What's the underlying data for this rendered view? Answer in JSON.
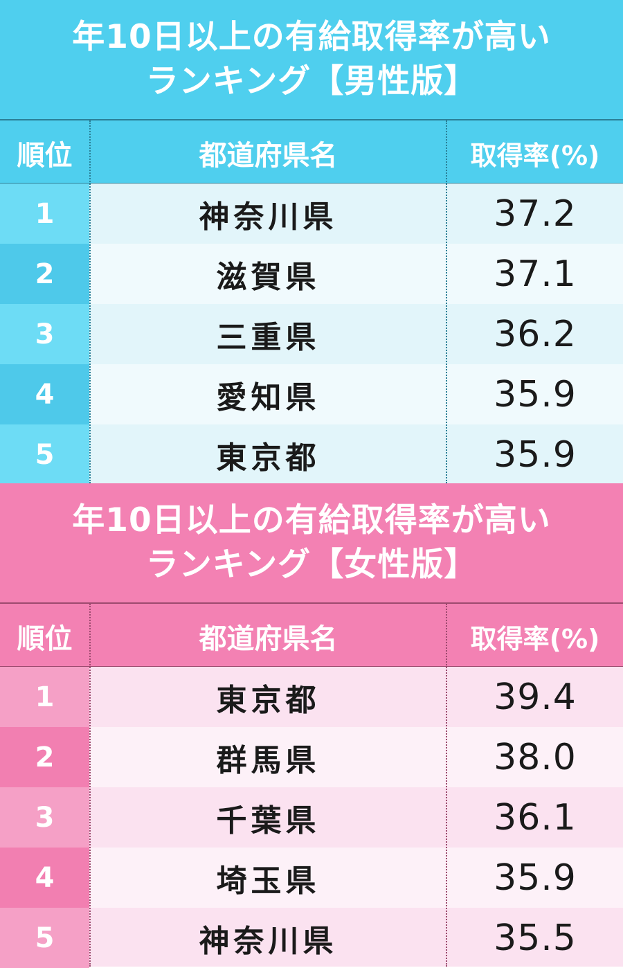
{
  "tables": [
    {
      "id": "male",
      "title_line1": "年10日以上の有給取得率が高い",
      "title_line2": "ランキング【男性版】",
      "headers": {
        "rank": "順位",
        "prefecture": "都道府県名",
        "rate": "取得率(%)"
      },
      "colors": {
        "band": "#4fcfee",
        "rank_odd": "#6ddcf5",
        "rank_even": "#4ec9ea",
        "row_odd": "#e2f5fa",
        "row_even": "#f0fafd",
        "divider": "#2a7f96"
      },
      "rows": [
        {
          "rank": "1",
          "prefecture": "神奈川県",
          "rate": "37.2"
        },
        {
          "rank": "2",
          "prefecture": "滋賀県",
          "rate": "37.1"
        },
        {
          "rank": "3",
          "prefecture": "三重県",
          "rate": "36.2"
        },
        {
          "rank": "4",
          "prefecture": "愛知県",
          "rate": "35.9"
        },
        {
          "rank": "5",
          "prefecture": "東京都",
          "rate": "35.9"
        }
      ]
    },
    {
      "id": "female",
      "title_line1": "年10日以上の有給取得率が高い",
      "title_line2": "ランキング【女性版】",
      "headers": {
        "rank": "順位",
        "prefecture": "都道府県名",
        "rate": "取得率(%)"
      },
      "colors": {
        "band": "#f381b3",
        "rank_odd": "#f5a0c6",
        "rank_even": "#f27fb1",
        "row_odd": "#fbe2f0",
        "row_even": "#fdf1f8",
        "divider": "#9c4a6e"
      },
      "rows": [
        {
          "rank": "1",
          "prefecture": "東京都",
          "rate": "39.4"
        },
        {
          "rank": "2",
          "prefecture": "群馬県",
          "rate": "38.0"
        },
        {
          "rank": "3",
          "prefecture": "千葉県",
          "rate": "36.1"
        },
        {
          "rank": "4",
          "prefecture": "埼玉県",
          "rate": "35.9"
        },
        {
          "rank": "5",
          "prefecture": "神奈川県",
          "rate": "35.5"
        }
      ]
    }
  ],
  "chart_data": [
    {
      "type": "table",
      "title": "年10日以上の有給取得率が高い ランキング【男性版】",
      "columns": [
        "順位",
        "都道府県名",
        "取得率(%)"
      ],
      "rows": [
        [
          "1",
          "神奈川県",
          37.2
        ],
        [
          "2",
          "滋賀県",
          37.1
        ],
        [
          "3",
          "三重県",
          36.2
        ],
        [
          "4",
          "愛知県",
          35.9
        ],
        [
          "5",
          "東京都",
          35.9
        ]
      ]
    },
    {
      "type": "table",
      "title": "年10日以上の有給取得率が高い ランキング【女性版】",
      "columns": [
        "順位",
        "都道府県名",
        "取得率(%)"
      ],
      "rows": [
        [
          "1",
          "東京都",
          39.4
        ],
        [
          "2",
          "群馬県",
          38.0
        ],
        [
          "3",
          "千葉県",
          36.1
        ],
        [
          "4",
          "埼玉県",
          35.9
        ],
        [
          "5",
          "神奈川県",
          35.5
        ]
      ]
    }
  ]
}
